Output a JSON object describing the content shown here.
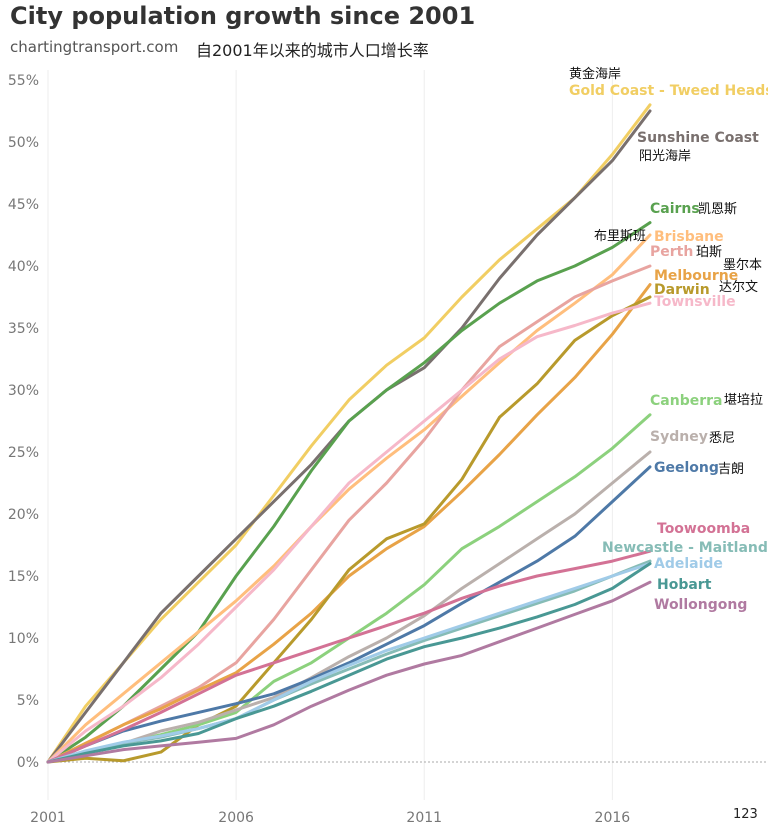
{
  "header": {
    "title": "City population growth since 2001",
    "site": "chartingtransport.com",
    "subtitle": "自2001年以来的城市人口增长率"
  },
  "page_number": "123",
  "chart_data": {
    "type": "line",
    "title": "City population growth since 2001",
    "subtitle": "自2001年以来的城市人口增长率",
    "xlabel": "",
    "ylabel": "",
    "x": [
      2001,
      2002,
      2003,
      2004,
      2005,
      2006,
      2007,
      2008,
      2009,
      2010,
      2011,
      2012,
      2013,
      2014,
      2015,
      2016,
      2017
    ],
    "xlim": [
      2001,
      2017
    ],
    "ylim": [
      0,
      56
    ],
    "x_ticks": [
      "2001",
      "2006",
      "2011",
      "2016"
    ],
    "y_ticks": [
      "0%",
      "5%",
      "10%",
      "15%",
      "20%",
      "25%",
      "30%",
      "35%",
      "40%",
      "45%",
      "50%",
      "55%"
    ],
    "grid": "vertical",
    "legend": "direct labels at line ends",
    "series": [
      {
        "name": "Gold Coast - Tweed Heads",
        "name_zh": "黄金海岸",
        "color": "#f1ce63",
        "values": [
          0,
          4.5,
          8,
          11.5,
          14.5,
          17.5,
          21.5,
          25.5,
          29.2,
          32,
          34.2,
          37.5,
          40.5,
          43,
          45.5,
          49,
          53
        ]
      },
      {
        "name": "Sunshine Coast",
        "name_zh": "阳光海岸",
        "color": "#79706e",
        "values": [
          0,
          4,
          8,
          12,
          15,
          18,
          21,
          24,
          27.5,
          30,
          31.8,
          35,
          39,
          42.5,
          45.5,
          48.5,
          52.5
        ]
      },
      {
        "name": "Cairns",
        "name_zh": "凯恩斯",
        "color": "#59a14f",
        "values": [
          0,
          2,
          4.5,
          7.5,
          10.5,
          15,
          19,
          23.5,
          27.5,
          30,
          32.2,
          34.8,
          37,
          38.8,
          40,
          41.5,
          43.5
        ]
      },
      {
        "name": "Brisbane",
        "name_zh": "布里斯班",
        "color": "#ffbe7d",
        "values": [
          0,
          3,
          5.5,
          8,
          10.5,
          13,
          15.8,
          19,
          22,
          24.5,
          26.8,
          29.5,
          32.2,
          34.8,
          37,
          39.3,
          42.5
        ]
      },
      {
        "name": "Perth",
        "name_zh": "珀斯",
        "color": "#e8a4a0",
        "values": [
          0,
          1.5,
          3,
          4.5,
          6,
          8,
          11.5,
          15.5,
          19.5,
          22.5,
          26,
          30,
          33.5,
          35.5,
          37.5,
          38.8,
          40
        ]
      },
      {
        "name": "Melbourne",
        "name_zh": "墨尔本",
        "color": "#e8a347",
        "values": [
          0,
          1.5,
          3,
          4.3,
          5.8,
          7.2,
          9.5,
          12,
          15,
          17.2,
          19,
          21.8,
          24.8,
          28,
          31,
          34.5,
          38.5
        ]
      },
      {
        "name": "Darwin",
        "name_zh": "达尔文",
        "color": "#b89a2c",
        "values": [
          0,
          0.3,
          0.1,
          0.8,
          3,
          4.5,
          8,
          11.5,
          15.5,
          18,
          19.2,
          22.8,
          27.8,
          30.5,
          34,
          36,
          37.5
        ]
      },
      {
        "name": "Townsville",
        "name_zh": "",
        "color": "#f6b8c9",
        "values": [
          0,
          2.5,
          4.5,
          6.8,
          9.5,
          12.5,
          15.5,
          19,
          22.5,
          25,
          27.5,
          30,
          32.5,
          34.3,
          35.2,
          36.2,
          37
        ]
      },
      {
        "name": "Canberra",
        "name_zh": "堪培拉",
        "color": "#8cd17d",
        "values": [
          0,
          0.8,
          1.5,
          2.2,
          3,
          4,
          6.5,
          8,
          10,
          12,
          14.3,
          17.2,
          19,
          21,
          23,
          25.3,
          28
        ]
      },
      {
        "name": "Sydney",
        "name_zh": "悉尼",
        "color": "#bab0ac",
        "values": [
          0,
          0.8,
          1.5,
          2.5,
          3.2,
          4.2,
          5.2,
          6.8,
          8.5,
          10,
          11.8,
          14,
          16,
          18,
          20,
          22.5,
          25
        ]
      },
      {
        "name": "Geelong",
        "name_zh": "吉朗",
        "color": "#4e79a7",
        "values": [
          0,
          1.3,
          2.5,
          3.3,
          4,
          4.7,
          5.5,
          6.7,
          8,
          9.5,
          11,
          12.8,
          14.5,
          16.2,
          18.2,
          21,
          23.8
        ]
      },
      {
        "name": "Toowoomba",
        "name_zh": "",
        "color": "#d37295",
        "values": [
          0,
          1.3,
          2.6,
          4,
          5.5,
          7,
          8,
          9,
          10,
          11,
          12,
          13.2,
          14.2,
          15,
          15.6,
          16.2,
          17
        ]
      },
      {
        "name": "Newcastle - Maitland",
        "name_zh": "",
        "color": "#86bcb6",
        "values": [
          0,
          0.8,
          1.5,
          2,
          2.7,
          3.5,
          5,
          6.3,
          7.5,
          8.7,
          9.8,
          10.8,
          11.8,
          12.8,
          13.8,
          15,
          16.2
        ]
      },
      {
        "name": "Adelaide",
        "name_zh": "",
        "color": "#a0cbe8",
        "values": [
          0,
          0.9,
          1.6,
          2.1,
          2.7,
          3.5,
          5,
          6.5,
          7.8,
          9,
          10,
          11,
          12,
          13,
          14,
          15,
          16
        ]
      },
      {
        "name": "Hobart",
        "name_zh": "",
        "color": "#499894",
        "values": [
          0,
          0.7,
          1.3,
          1.7,
          2.3,
          3.5,
          4.5,
          5.7,
          7,
          8.3,
          9.3,
          10,
          10.8,
          11.7,
          12.7,
          14,
          16
        ]
      },
      {
        "name": "Wollongong",
        "name_zh": "",
        "color": "#b07aa1",
        "values": [
          0,
          0.5,
          1,
          1.3,
          1.6,
          1.9,
          3,
          4.5,
          5.8,
          7,
          7.9,
          8.6,
          9.7,
          10.8,
          11.9,
          13,
          14.5
        ]
      }
    ]
  }
}
